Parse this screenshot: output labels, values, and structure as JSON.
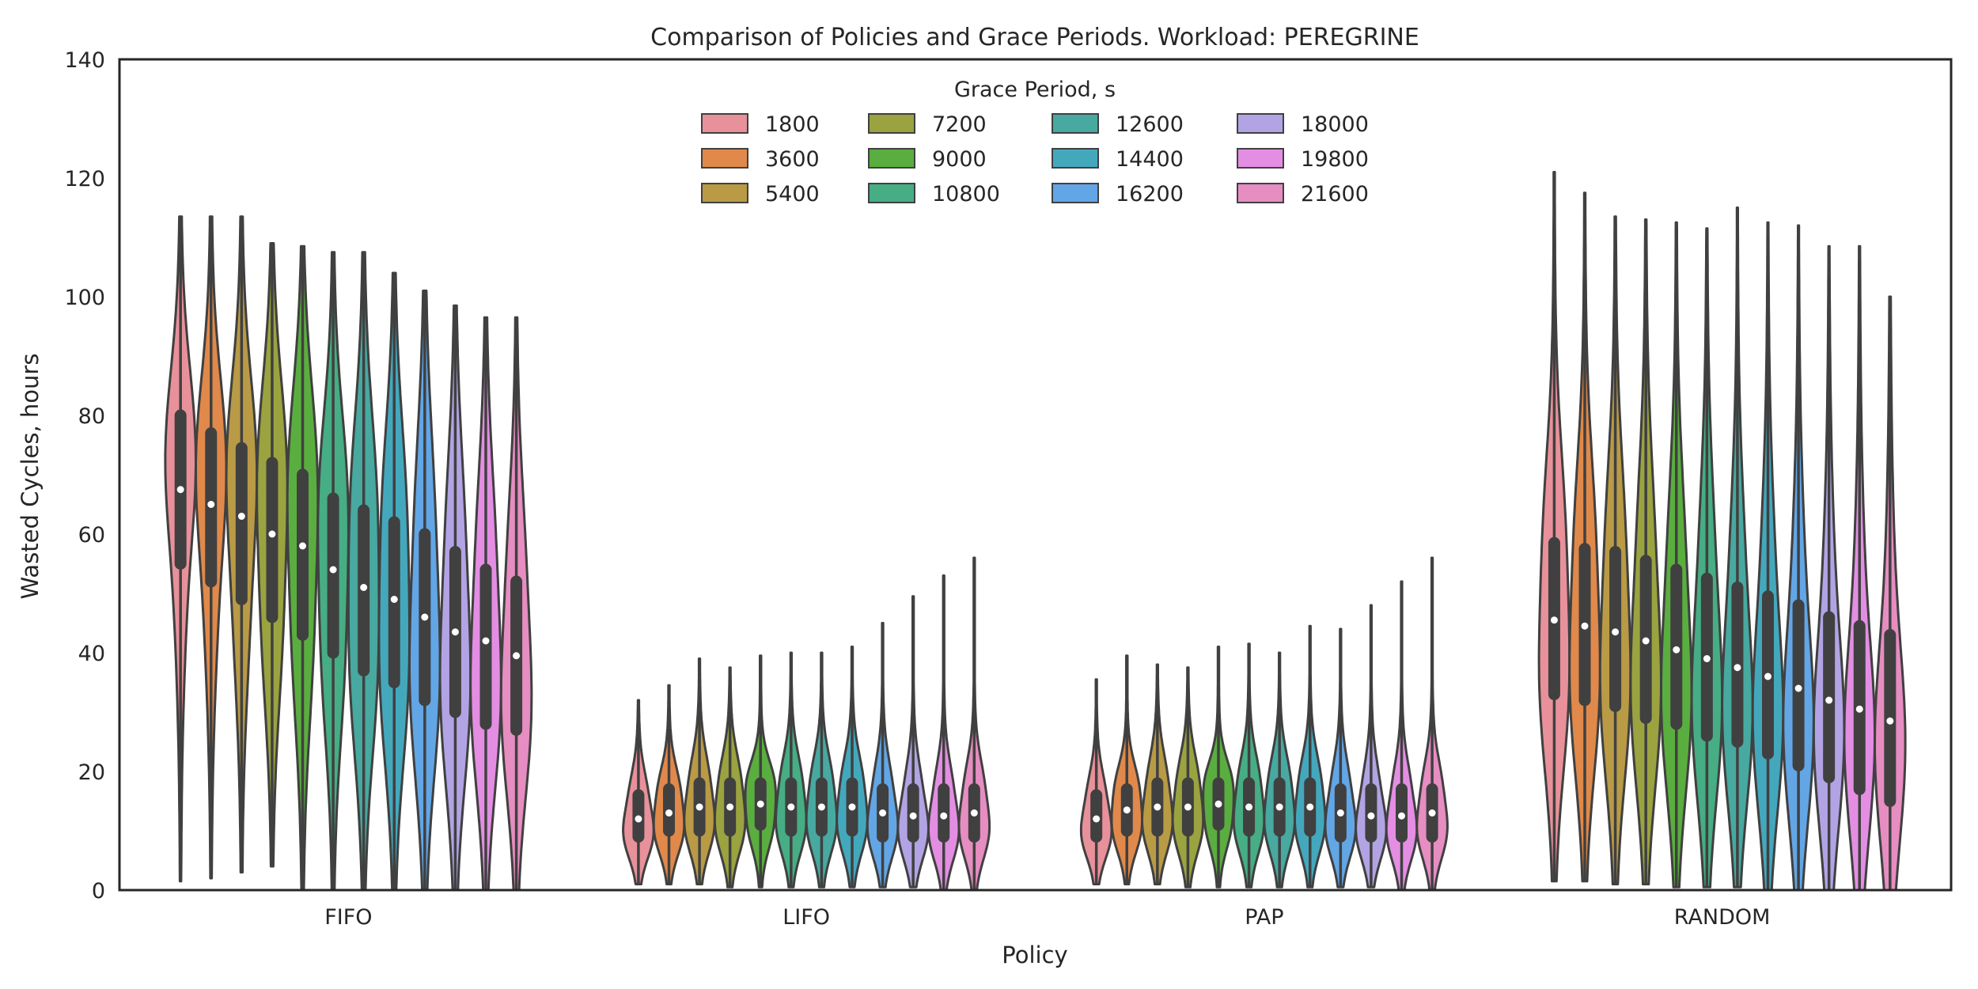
{
  "chart_data": {
    "type": "violin",
    "title": "Comparison of Policies and Grace Periods. Workload: PEREGRINE",
    "xlabel": "Policy",
    "ylabel": "Wasted Cycles, hours",
    "ylim": [
      0,
      140
    ],
    "yticks": [
      "0",
      "20",
      "40",
      "60",
      "80",
      "100",
      "120",
      "140"
    ],
    "categories": [
      "FIFO",
      "LIFO",
      "PAP",
      "RANDOM"
    ],
    "grid": false,
    "legend": {
      "title": "Grace Period, s",
      "placement": "top-center",
      "columns": 4
    },
    "series": [
      {
        "name": "1800",
        "color": "#e8919b"
      },
      {
        "name": "3600",
        "color": "#e0894a"
      },
      {
        "name": "5400",
        "color": "#b99a45"
      },
      {
        "name": "7200",
        "color": "#9aa33f"
      },
      {
        "name": "9000",
        "color": "#5aae3f"
      },
      {
        "name": "10800",
        "color": "#46ad84"
      },
      {
        "name": "12600",
        "color": "#47a9a0"
      },
      {
        "name": "14400",
        "color": "#44a8bd"
      },
      {
        "name": "16200",
        "color": "#62a6e6"
      },
      {
        "name": "18000",
        "color": "#b2a4e4"
      },
      {
        "name": "19800",
        "color": "#e38ee3"
      },
      {
        "name": "21600",
        "color": "#e68dc1"
      }
    ],
    "violins": {
      "FIFO": [
        {
          "min": 1.5,
          "q1": 55,
          "median": 67.5,
          "q3": 80,
          "max": 113.5
        },
        {
          "min": 2,
          "q1": 52,
          "median": 65,
          "q3": 77,
          "max": 113.5
        },
        {
          "min": 3,
          "q1": 49,
          "median": 63,
          "q3": 74.5,
          "max": 113.5
        },
        {
          "min": 4,
          "q1": 46,
          "median": 60,
          "q3": 72,
          "max": 109
        },
        {
          "min": 0,
          "q1": 43,
          "median": 58,
          "q3": 70,
          "max": 108.5
        },
        {
          "min": 0,
          "q1": 40,
          "median": 54,
          "q3": 66,
          "max": 107.5
        },
        {
          "min": 0,
          "q1": 37,
          "median": 51,
          "q3": 64,
          "max": 107.5
        },
        {
          "min": 0,
          "q1": 35,
          "median": 49,
          "q3": 62,
          "max": 104
        },
        {
          "min": 0,
          "q1": 32,
          "median": 46,
          "q3": 60,
          "max": 101
        },
        {
          "min": 0,
          "q1": 30,
          "median": 43.5,
          "q3": 57,
          "max": 98.5
        },
        {
          "min": 0,
          "q1": 28,
          "median": 42,
          "q3": 54,
          "max": 96.5
        },
        {
          "min": 0,
          "q1": 27,
          "median": 39.5,
          "q3": 52,
          "max": 96.5
        }
      ],
      "LIFO": [
        {
          "min": 1,
          "q1": 9,
          "median": 12,
          "q3": 16,
          "max": 32
        },
        {
          "min": 1,
          "q1": 10,
          "median": 13,
          "q3": 17,
          "max": 34.5
        },
        {
          "min": 1,
          "q1": 10,
          "median": 14,
          "q3": 18,
          "max": 39
        },
        {
          "min": 0.5,
          "q1": 10,
          "median": 14,
          "q3": 18,
          "max": 37.5
        },
        {
          "min": 0.5,
          "q1": 11,
          "median": 14.5,
          "q3": 18,
          "max": 39.5
        },
        {
          "min": 0.5,
          "q1": 10,
          "median": 14,
          "q3": 18,
          "max": 40
        },
        {
          "min": 0.5,
          "q1": 10,
          "median": 14,
          "q3": 18,
          "max": 40
        },
        {
          "min": 0.5,
          "q1": 10,
          "median": 14,
          "q3": 18,
          "max": 41
        },
        {
          "min": 0.5,
          "q1": 9,
          "median": 13,
          "q3": 17,
          "max": 45
        },
        {
          "min": 0.5,
          "q1": 9,
          "median": 12.5,
          "q3": 17,
          "max": 49.5
        },
        {
          "min": 0,
          "q1": 9,
          "median": 12.5,
          "q3": 17,
          "max": 53
        },
        {
          "min": 0,
          "q1": 9,
          "median": 13,
          "q3": 17,
          "max": 56
        }
      ],
      "PAP": [
        {
          "min": 1,
          "q1": 9,
          "median": 12,
          "q3": 16,
          "max": 35.5
        },
        {
          "min": 1,
          "q1": 10,
          "median": 13.5,
          "q3": 17,
          "max": 39.5
        },
        {
          "min": 1,
          "q1": 10,
          "median": 14,
          "q3": 18,
          "max": 38
        },
        {
          "min": 0.5,
          "q1": 10,
          "median": 14,
          "q3": 18,
          "max": 37.5
        },
        {
          "min": 0.5,
          "q1": 11,
          "median": 14.5,
          "q3": 18,
          "max": 41
        },
        {
          "min": 0.5,
          "q1": 10,
          "median": 14,
          "q3": 18,
          "max": 41.5
        },
        {
          "min": 0.5,
          "q1": 10,
          "median": 14,
          "q3": 18,
          "max": 40
        },
        {
          "min": 0.5,
          "q1": 10,
          "median": 14,
          "q3": 18,
          "max": 44.5
        },
        {
          "min": 0.5,
          "q1": 9,
          "median": 13,
          "q3": 17,
          "max": 44
        },
        {
          "min": 0.5,
          "q1": 9,
          "median": 12.5,
          "q3": 17,
          "max": 48
        },
        {
          "min": 0,
          "q1": 9,
          "median": 12.5,
          "q3": 17,
          "max": 52
        },
        {
          "min": 0,
          "q1": 9,
          "median": 13,
          "q3": 17,
          "max": 56
        }
      ],
      "RANDOM": [
        {
          "min": 1.5,
          "q1": 33,
          "median": 45.5,
          "q3": 58.5,
          "max": 121
        },
        {
          "min": 1.5,
          "q1": 32,
          "median": 44.5,
          "q3": 57.5,
          "max": 117.5
        },
        {
          "min": 1,
          "q1": 31,
          "median": 43.5,
          "q3": 57,
          "max": 113.5
        },
        {
          "min": 1,
          "q1": 29,
          "median": 42,
          "q3": 55.5,
          "max": 113
        },
        {
          "min": 0.5,
          "q1": 28,
          "median": 40.5,
          "q3": 54,
          "max": 112.5
        },
        {
          "min": 0.5,
          "q1": 26,
          "median": 39,
          "q3": 52.5,
          "max": 111.5
        },
        {
          "min": 0.5,
          "q1": 25,
          "median": 37.5,
          "q3": 51,
          "max": 115
        },
        {
          "min": 0,
          "q1": 23,
          "median": 36,
          "q3": 49.5,
          "max": 112.5
        },
        {
          "min": 0,
          "q1": 21,
          "median": 34,
          "q3": 48,
          "max": 112
        },
        {
          "min": 0,
          "q1": 19,
          "median": 32,
          "q3": 46,
          "max": 108.5
        },
        {
          "min": 0,
          "q1": 17,
          "median": 30.5,
          "q3": 44.5,
          "max": 108.5
        },
        {
          "min": 0,
          "q1": 15,
          "median": 28.5,
          "q3": 43,
          "max": 100
        }
      ]
    }
  }
}
